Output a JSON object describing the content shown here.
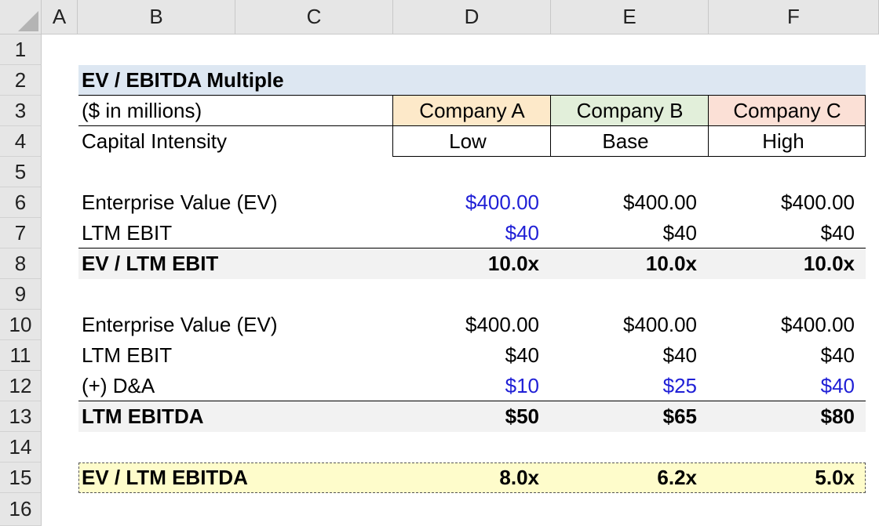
{
  "sheet": {
    "columns": [
      "A",
      "B",
      "C",
      "D",
      "E",
      "F"
    ],
    "rows": [
      "1",
      "2",
      "3",
      "4",
      "5",
      "6",
      "7",
      "8",
      "9",
      "10",
      "11",
      "12",
      "13",
      "14",
      "15",
      "16"
    ]
  },
  "table": {
    "title": "EV / EBITDA Multiple",
    "units": "($ in millions)",
    "companies": [
      "Company A",
      "Company B",
      "Company C"
    ],
    "company_colors": [
      "#fde9c9",
      "#e2efda",
      "#fbe0d6"
    ],
    "intensity_label": "Capital Intensity",
    "intensity": [
      "Low",
      "Base",
      "High"
    ],
    "section1": {
      "ev_label": "Enterprise Value (EV)",
      "ev": [
        "$400.00",
        "$400.00",
        "$400.00"
      ],
      "ebit_label": "LTM EBIT",
      "ebit": [
        "$40",
        "$40",
        "$40"
      ],
      "multiple_label": "EV / LTM EBIT",
      "multiple": [
        "10.0x",
        "10.0x",
        "10.0x"
      ]
    },
    "section2": {
      "ev_label": "Enterprise Value (EV)",
      "ev": [
        "$400.00",
        "$400.00",
        "$400.00"
      ],
      "ebit_label": "LTM EBIT",
      "ebit": [
        "$40",
        "$40",
        "$40"
      ],
      "da_label": "(+) D&A",
      "da": [
        "$10",
        "$25",
        "$40"
      ],
      "ebitda_label": "LTM EBITDA",
      "ebitda": [
        "$50",
        "$65",
        "$80"
      ]
    },
    "final": {
      "label": "EV / LTM EBITDA",
      "values": [
        "8.0x",
        "6.2x",
        "5.0x"
      ]
    },
    "input_color": "#1f1fd6"
  }
}
